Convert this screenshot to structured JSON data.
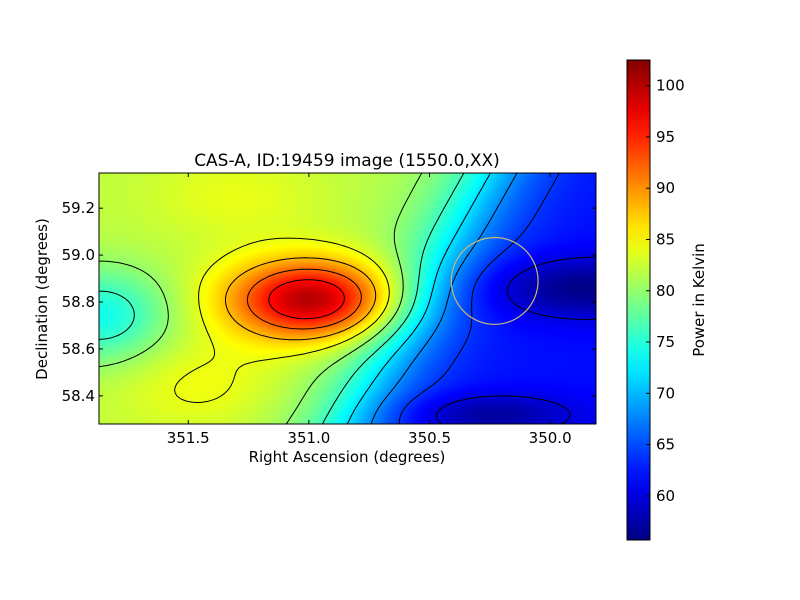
{
  "chart_data": {
    "type": "heatmap",
    "title": "CAS-A, ID:19459 image (1550.0,XX)",
    "xlabel": "Right Ascension (degrees)",
    "ylabel": "Declination (degrees)",
    "xlim": [
      351.87,
      349.81
    ],
    "ylim": [
      58.28,
      59.35
    ],
    "x_ticks": [
      351.5,
      351.0,
      350.5,
      350.0
    ],
    "x_tick_labels": [
      "351.5",
      "351.0",
      "350.5",
      "350.0"
    ],
    "y_ticks": [
      58.4,
      58.6,
      58.8,
      59.0,
      59.2
    ],
    "y_tick_labels": [
      "58.4",
      "58.6",
      "58.8",
      "59.0",
      "59.2"
    ],
    "colormap": "jet",
    "colorbar": {
      "label": "Power in Kelvin",
      "range": [
        55.7,
        102.5
      ],
      "ticks": [
        60,
        65,
        70,
        75,
        80,
        85,
        90,
        95,
        100
      ],
      "tick_labels": [
        "60",
        "65",
        "70",
        "75",
        "80",
        "85",
        "90",
        "95",
        "100"
      ]
    },
    "contour_color": "#000000",
    "circle": {
      "center_ra": 350.23,
      "center_dec": 58.89,
      "radius_deg": 0.185,
      "color": "#c8b878"
    },
    "field_features": [
      {
        "kind": "peak",
        "ra": 350.99,
        "dec": 58.81,
        "value": 102.5
      },
      {
        "kind": "trough",
        "ra": 349.86,
        "dec": 58.86,
        "value": 56
      },
      {
        "kind": "trough",
        "ra": 350.25,
        "dec": 58.32,
        "value": 57
      },
      {
        "kind": "local_min",
        "ra": 351.86,
        "dec": 58.74,
        "value": 72
      }
    ]
  }
}
